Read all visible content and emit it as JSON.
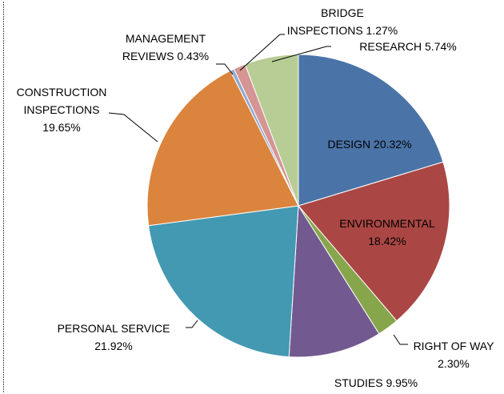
{
  "chart_data": {
    "type": "pie",
    "categories": [
      "DESIGN",
      "ENVIRONMENTAL",
      "RIGHT OF WAY",
      "STUDIES",
      "PERSONAL SERVICE",
      "CONSTRUCTION INSPECTIONS",
      "MANAGEMENT REVIEWS",
      "BRIDGE INSPECTIONS",
      "RESEARCH"
    ],
    "values": [
      20.32,
      18.42,
      2.3,
      9.95,
      21.92,
      19.65,
      0.43,
      1.27,
      5.74
    ],
    "value_labels": [
      "20.32%",
      "18.42%",
      "2.30%",
      "9.95%",
      "21.92%",
      "19.65%",
      "0.43%",
      "1.27%",
      "5.74%"
    ],
    "colors": [
      "#4a73a7",
      "#aa4744",
      "#87a64c",
      "#725a91",
      "#4399b1",
      "#db843d",
      "#92a9d0",
      "#d49594",
      "#b8cd95"
    ]
  }
}
